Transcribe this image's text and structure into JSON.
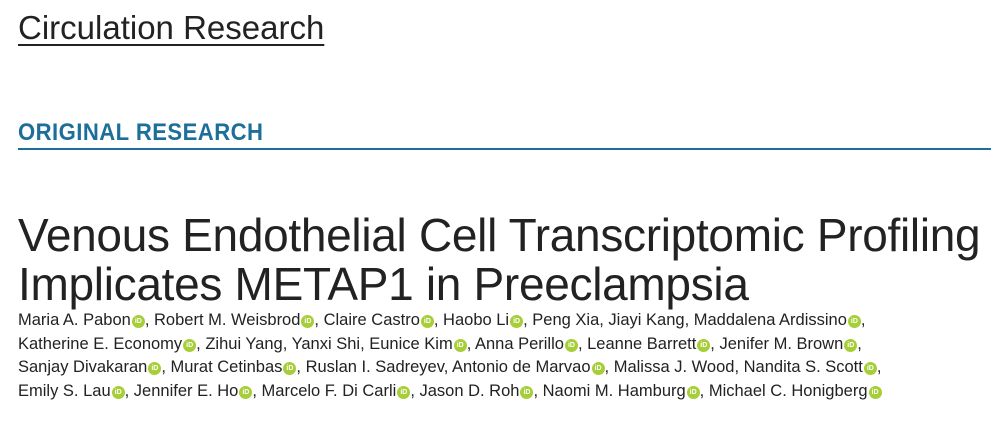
{
  "journal": "Circulation Research",
  "section": "ORIGINAL RESEARCH",
  "title_lines": [
    "Venous Endothelial Cell Transcriptomic Profiling",
    "Implicates METAP1 in Preeclampsia"
  ],
  "orcid_icon_text": "iD",
  "author_lines": [
    [
      {
        "name": "Maria A. Pabon",
        "orcid": true
      },
      {
        "name": "Robert M. Weisbrod",
        "orcid": true
      },
      {
        "name": "Claire Castro",
        "orcid": true
      },
      {
        "name": "Haobo Li",
        "orcid": true
      },
      {
        "name": "Peng Xia",
        "orcid": false
      },
      {
        "name": "Jiayi Kang",
        "orcid": false
      },
      {
        "name": "Maddalena Ardissino",
        "orcid": true
      }
    ],
    [
      {
        "name": "Katherine E. Economy",
        "orcid": true
      },
      {
        "name": "Zihui Yang",
        "orcid": false
      },
      {
        "name": "Yanxi Shi",
        "orcid": false
      },
      {
        "name": "Eunice Kim",
        "orcid": true
      },
      {
        "name": "Anna Perillo",
        "orcid": true
      },
      {
        "name": "Leanne Barrett",
        "orcid": true
      },
      {
        "name": "Jenifer M. Brown",
        "orcid": true
      }
    ],
    [
      {
        "name": "Sanjay Divakaran",
        "orcid": true
      },
      {
        "name": "Murat Cetinbas",
        "orcid": true
      },
      {
        "name": "Ruslan I. Sadreyev",
        "orcid": false
      },
      {
        "name": "Antonio de Marvao",
        "orcid": true
      },
      {
        "name": "Malissa J. Wood",
        "orcid": false
      },
      {
        "name": "Nandita S. Scott",
        "orcid": true
      }
    ],
    [
      {
        "name": "Emily S. Lau",
        "orcid": true
      },
      {
        "name": "Jennifer E. Ho",
        "orcid": true
      },
      {
        "name": "Marcelo F. Di Carli",
        "orcid": true
      },
      {
        "name": "Jason D. Roh",
        "orcid": true
      },
      {
        "name": "Naomi M. Hamburg",
        "orcid": true
      },
      {
        "name": "Michael C. Honigberg",
        "orcid": true
      }
    ]
  ],
  "colors": {
    "section": "#1d6f9a",
    "orcid": "#a6ce39",
    "text": "#222222"
  }
}
